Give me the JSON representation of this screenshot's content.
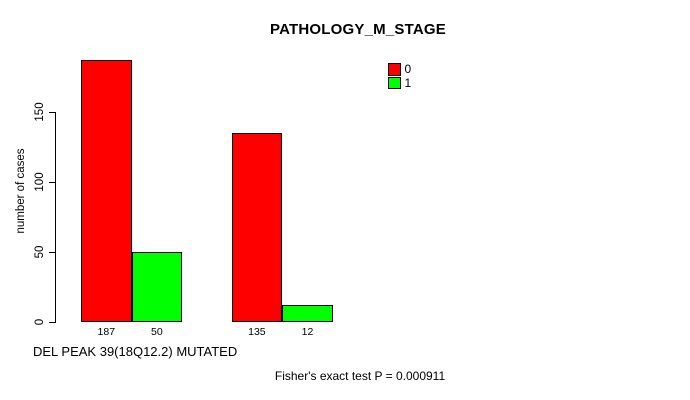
{
  "chart_data": {
    "type": "bar",
    "title": "PATHOLOGY_M_STAGE",
    "xlabel": "DEL PEAK 39(18Q12.2) MUTATED",
    "ylabel": "number of cases",
    "background": "#ffffff",
    "text_color": "#000000",
    "bar_border_color": "#000000",
    "ylim": [
      0,
      150
    ],
    "yticks": [
      0,
      50,
      100,
      150
    ],
    "grid": false,
    "legend_position": "top-right",
    "series": [
      {
        "name": "0",
        "color": "#ff0000",
        "values": [
          187,
          135
        ]
      },
      {
        "name": "1",
        "color": "#00ff00",
        "values": [
          50,
          12
        ]
      }
    ],
    "bar_value_labels": [
      [
        "187",
        "50"
      ],
      [
        "135",
        "12"
      ]
    ],
    "annotation": "Fisher's exact test P = 0.000911"
  }
}
